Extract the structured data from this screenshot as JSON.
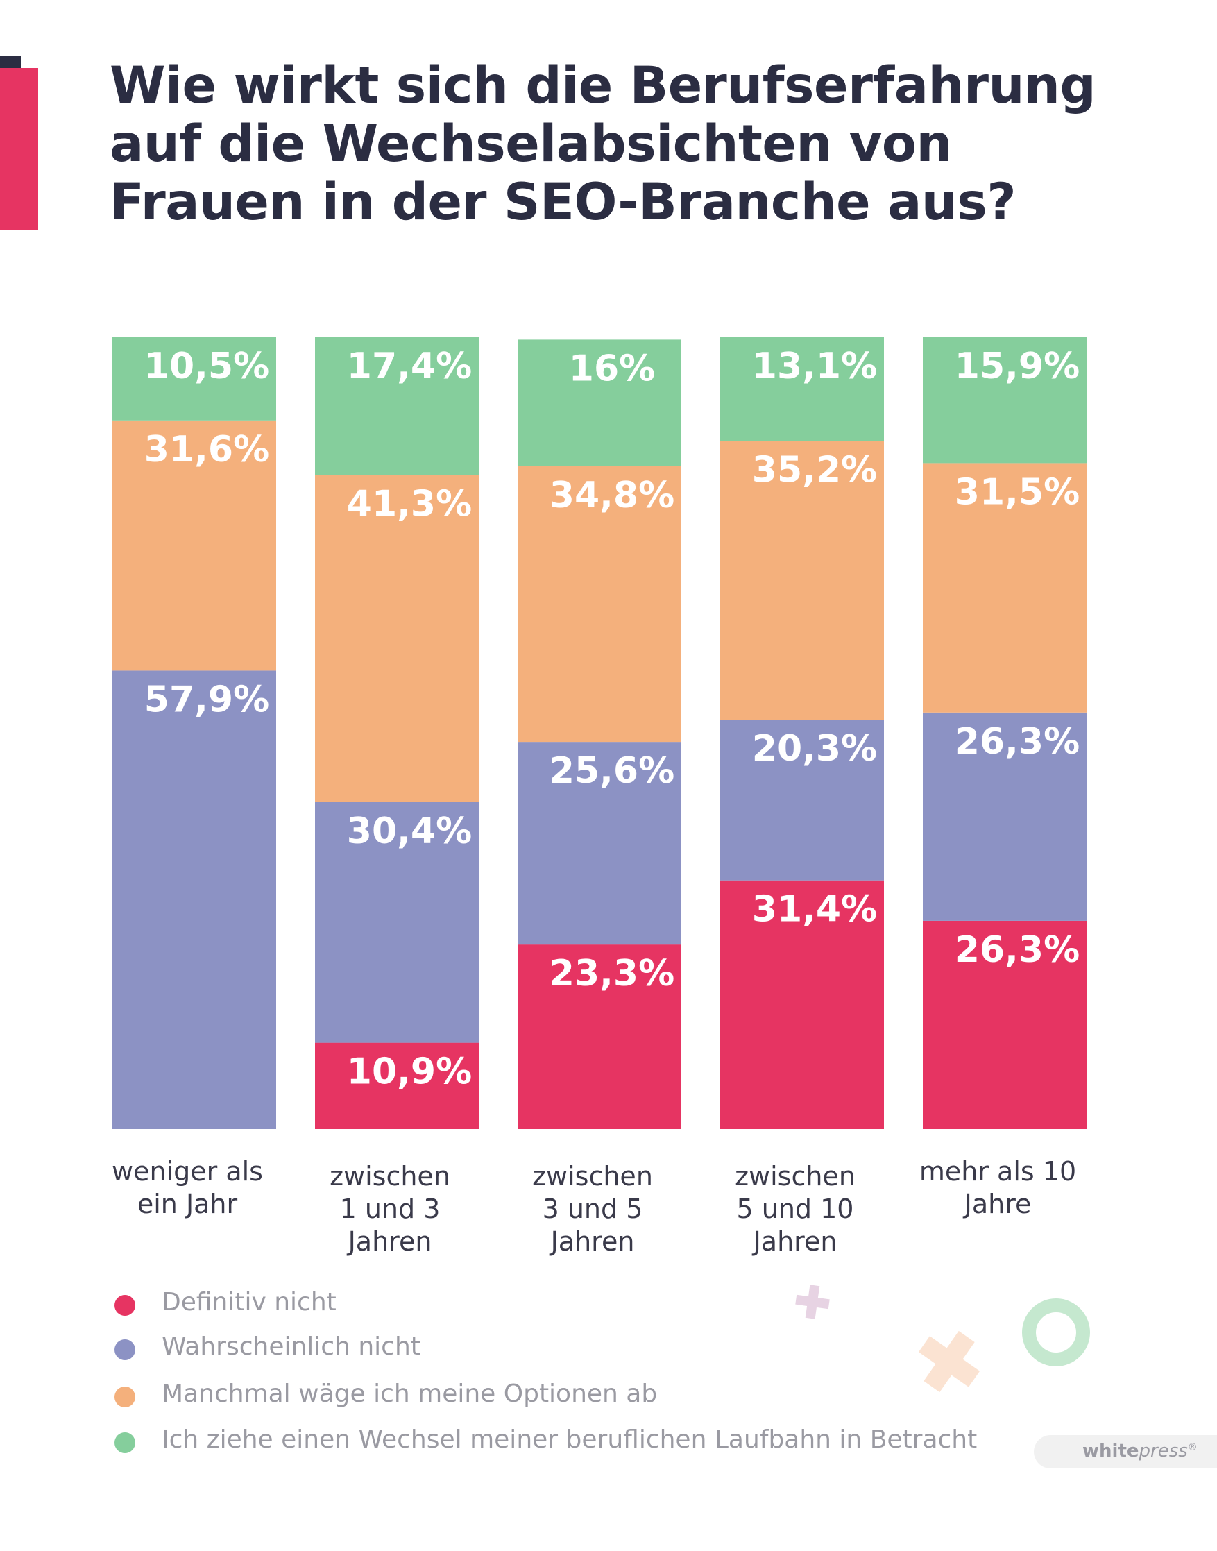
{
  "title": "Wie wirkt sich die Berufserfahrung auf die Wechselabsichten von Frauen in der SEO-Branche aus?",
  "title_lines": [
    "Wie wirkt sich die Berufserfahrung",
    "auf die Wechselabsichten von",
    "Frauen in der SEO-Branche aus?"
  ],
  "colors": {
    "definitiv_nicht": "#e63462",
    "wahrscheinlich_nicht": "#8c92c4",
    "manchmal": "#f4b07c",
    "wechsel": "#85ce9c",
    "title": "#2b2d42",
    "accent": "#e63462"
  },
  "chart_data": {
    "type": "bar",
    "stacked": true,
    "title": "Wie wirkt sich die Berufserfahrung auf die Wechselabsichten von Frauen in der SEO-Branche aus?",
    "xlabel": "",
    "ylabel": "",
    "ylim": [
      0,
      100
    ],
    "categories": [
      [
        "weniger als",
        "ein Jahr"
      ],
      [
        "zwischen",
        "1 und 3",
        "Jahren"
      ],
      [
        "zwischen",
        "3 und 5",
        "Jahren"
      ],
      [
        "zwischen",
        "5 und 10",
        "Jahren"
      ],
      [
        "mehr als 10",
        "Jahre"
      ]
    ],
    "series": [
      {
        "name": "Definitiv nicht",
        "color": "#e63462",
        "values": [
          0,
          10.9,
          23.3,
          31.4,
          26.3
        ],
        "labels": [
          "",
          "10,9",
          "23,3",
          "31,4",
          "26,3"
        ]
      },
      {
        "name": "Wahrscheinlich nicht",
        "color": "#8c92c4",
        "values": [
          57.9,
          30.4,
          25.6,
          20.3,
          26.3
        ],
        "labels": [
          "57,9",
          "30,4",
          "25,6",
          "20,3",
          "26,3"
        ]
      },
      {
        "name": "Manchmal wäge ich meine Optionen ab",
        "color": "#f4b07c",
        "values": [
          31.6,
          41.3,
          34.8,
          35.2,
          31.5
        ],
        "labels": [
          "31,6",
          "41,3",
          "34,8",
          "35,2",
          "31,5"
        ]
      },
      {
        "name": "Ich ziehe einen Wechsel meiner beruflichen Laufbahn in Betracht",
        "color": "#85ce9c",
        "values": [
          10.5,
          17.4,
          16,
          13.1,
          15.9
        ],
        "labels": [
          "10,5",
          "17,4",
          "16",
          "13,1",
          "15,9"
        ]
      }
    ],
    "value_suffix": "%",
    "legend_position": "bottom-left"
  },
  "legend": [
    {
      "label": "Definitiv nicht",
      "color": "#e63462"
    },
    {
      "label": "Wahrscheinlich nicht",
      "color": "#8c92c4"
    },
    {
      "label": "Manchmal wäge ich meine Optionen ab",
      "color": "#f4b07c"
    },
    {
      "label": "Ich ziehe einen Wechsel meiner beruflichen Laufbahn in Betracht",
      "color": "#85ce9c"
    }
  ],
  "logo": {
    "bold": "white",
    "rest": "press",
    "mark": "®"
  }
}
